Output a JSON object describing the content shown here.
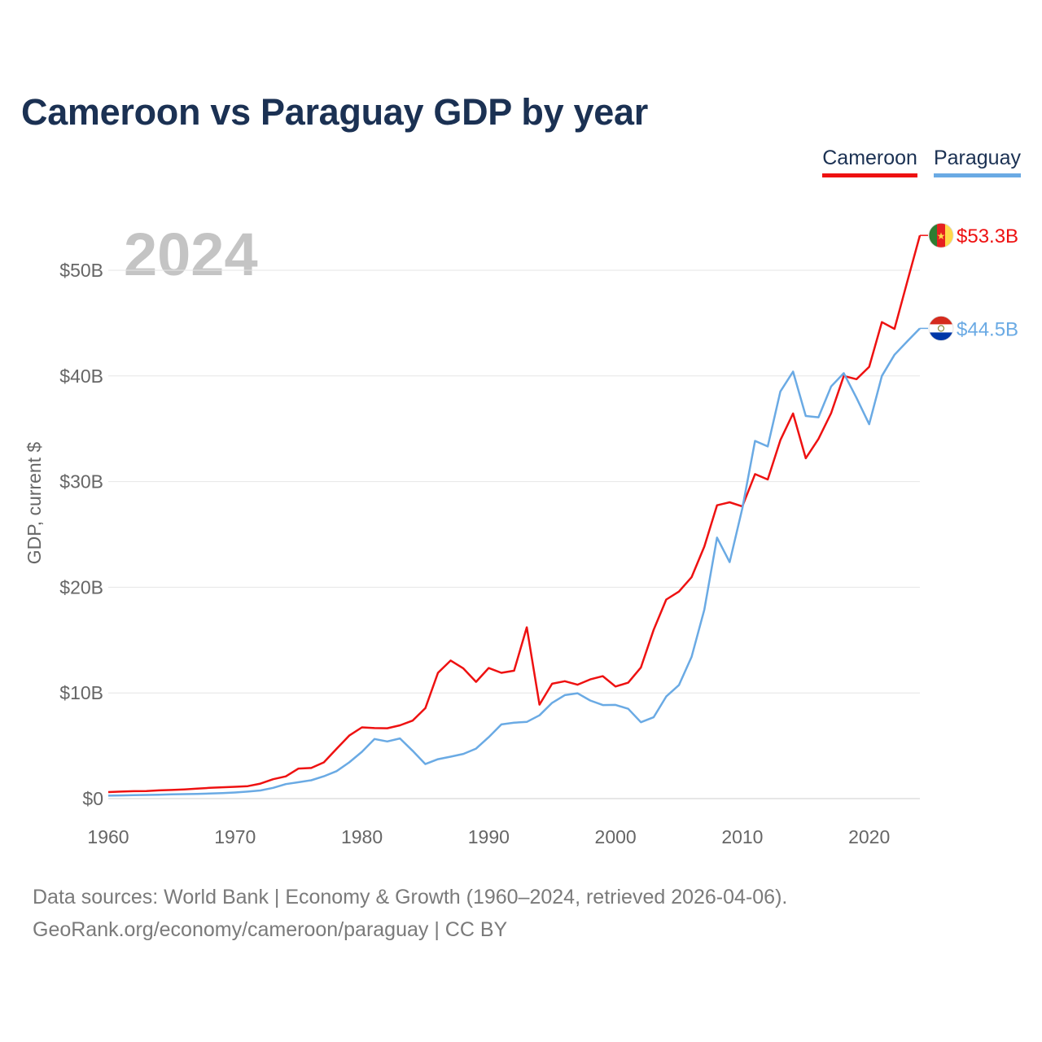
{
  "chart_data": {
    "type": "line",
    "title": "Cameroon vs Paraguay GDP by year",
    "year_label": "2024",
    "ylabel": "GDP, current $",
    "xlim": [
      1960,
      2024
    ],
    "ylim": [
      0,
      55
    ],
    "yticks": [
      0,
      10,
      20,
      30,
      40,
      50
    ],
    "ytick_labels": [
      "$0",
      "$10B",
      "$20B",
      "$30B",
      "$40B",
      "$50B"
    ],
    "xticks": [
      1960,
      1970,
      1980,
      1990,
      2000,
      2010,
      2020
    ],
    "xtick_labels": [
      "1960",
      "1970",
      "1980",
      "1990",
      "2000",
      "2010",
      "2020"
    ],
    "x": [
      1960,
      1961,
      1962,
      1963,
      1964,
      1965,
      1966,
      1967,
      1968,
      1969,
      1970,
      1971,
      1972,
      1973,
      1974,
      1975,
      1976,
      1977,
      1978,
      1979,
      1980,
      1981,
      1982,
      1983,
      1984,
      1985,
      1986,
      1987,
      1988,
      1989,
      1990,
      1991,
      1992,
      1993,
      1994,
      1995,
      1996,
      1997,
      1998,
      1999,
      2000,
      2001,
      2002,
      2003,
      2004,
      2005,
      2006,
      2007,
      2008,
      2009,
      2010,
      2011,
      2012,
      2013,
      2014,
      2015,
      2016,
      2017,
      2018,
      2019,
      2020,
      2021,
      2022,
      2023,
      2024
    ],
    "series": [
      {
        "name": "Cameroon",
        "color": "#ee1111",
        "end_label": "$53.3B",
        "values": [
          0.62,
          0.66,
          0.7,
          0.72,
          0.78,
          0.82,
          0.87,
          0.95,
          1.02,
          1.07,
          1.12,
          1.18,
          1.42,
          1.83,
          2.1,
          2.84,
          2.9,
          3.43,
          4.71,
          5.96,
          6.74,
          6.67,
          6.66,
          6.93,
          7.38,
          8.56,
          11.9,
          13.07,
          12.32,
          11.05,
          12.36,
          11.9,
          12.1,
          16.21,
          8.89,
          10.87,
          11.11,
          10.78,
          11.28,
          11.59,
          10.61,
          10.97,
          12.41,
          15.96,
          18.84,
          19.59,
          20.96,
          23.85,
          27.76,
          28.04,
          27.65,
          30.71,
          30.2,
          33.92,
          36.45,
          32.21,
          34.04,
          36.49,
          40.0,
          39.69,
          40.86,
          45.09,
          44.45,
          48.9,
          53.3
        ]
      },
      {
        "name": "Paraguay",
        "color": "#6aaae4",
        "end_label": "$44.5B",
        "values": [
          0.28,
          0.3,
          0.32,
          0.35,
          0.37,
          0.4,
          0.42,
          0.45,
          0.48,
          0.52,
          0.58,
          0.66,
          0.77,
          1.02,
          1.37,
          1.55,
          1.73,
          2.11,
          2.6,
          3.43,
          4.43,
          5.64,
          5.41,
          5.69,
          4.52,
          3.27,
          3.73,
          3.97,
          4.23,
          4.73,
          5.81,
          7.02,
          7.19,
          7.26,
          7.88,
          9.06,
          9.79,
          9.97,
          9.28,
          8.85,
          8.87,
          8.5,
          7.23,
          7.7,
          9.66,
          10.74,
          13.43,
          17.88,
          24.7,
          22.38,
          27.47,
          33.85,
          33.33,
          38.53,
          40.41,
          36.21,
          36.09,
          39.01,
          40.26,
          37.93,
          35.43,
          40.0,
          42.0,
          43.27,
          44.5
        ]
      }
    ]
  },
  "legend": [
    "Cameroon",
    "Paraguay"
  ],
  "source_line1": "Data sources: World Bank | Economy & Growth (1960–2024, retrieved 2026-04-06).",
  "source_line2": "GeoRank.org/economy/cameroon/paraguay | CC BY"
}
